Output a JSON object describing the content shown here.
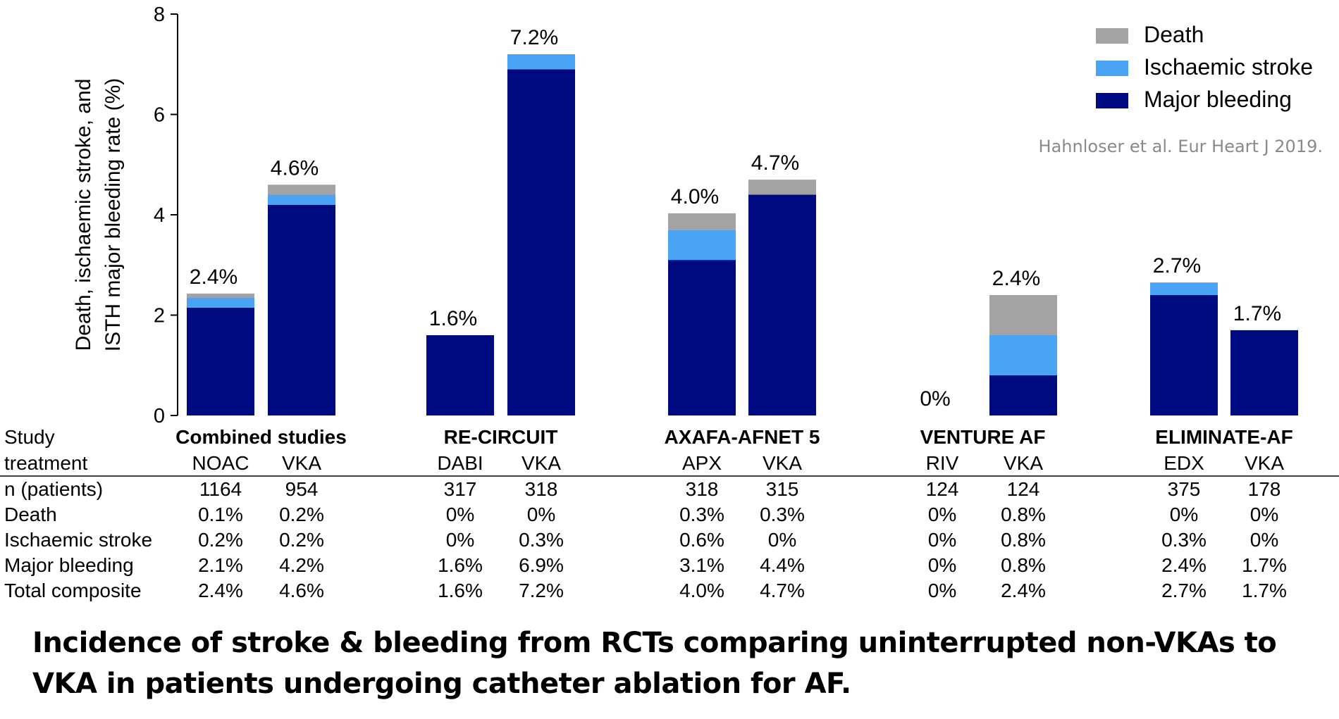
{
  "chart_data": {
    "type": "bar",
    "stacked": true,
    "ylabel": [
      "Death, ischaemic stroke, and",
      "ISTH major bleeding rate (%)"
    ],
    "ylim": [
      0,
      8
    ],
    "yticks": [
      "0",
      "2",
      "4",
      "6",
      "8"
    ],
    "groups": [
      "Combined studies",
      "RE-CIRCUIT",
      "AXAFA-AFNET 5",
      "VENTURE AF",
      "ELIMINATE-AF"
    ],
    "categories": [
      "NOAC",
      "VKA",
      "DABI",
      "VKA",
      "APX",
      "VKA",
      "RIV",
      "VKA",
      "EDX",
      "VKA"
    ],
    "series": [
      {
        "name": "Major bleeding",
        "color": "#000a80",
        "values": [
          2.15,
          4.2,
          1.6,
          6.9,
          3.1,
          4.4,
          0,
          0.8,
          2.4,
          1.7
        ]
      },
      {
        "name": "Ischaemic stroke",
        "color": "#4aa3f5",
        "values": [
          0.2,
          0.2,
          0,
          0.3,
          0.6,
          0,
          0,
          0.8,
          0.25,
          0
        ]
      },
      {
        "name": "Death",
        "color": "#a3a3a3",
        "values": [
          0.08,
          0.2,
          0,
          0,
          0.33,
          0.3,
          0,
          0.8,
          0,
          0
        ]
      }
    ],
    "bar_labels": [
      "2.4%",
      "4.6%",
      "1.6%",
      "7.2%",
      "4.0%",
      "4.7%",
      "0%",
      "2.4%",
      "2.7%",
      "1.7%"
    ],
    "legend_position": "top-right",
    "source": "Hahnloser et al. Eur Heart J 2019."
  },
  "table": {
    "study_label": "Study",
    "treatment_label": "treatment",
    "rows": [
      {
        "label": "n (patients)",
        "values": [
          "1164",
          "954",
          "317",
          "318",
          "318",
          "315",
          "124",
          "124",
          "375",
          "178"
        ]
      },
      {
        "label": "Death",
        "values": [
          "0.1%",
          "0.2%",
          "0%",
          "0%",
          "0.3%",
          "0.3%",
          "0%",
          "0.8%",
          "0%",
          "0%"
        ]
      },
      {
        "label": "Ischaemic stroke",
        "values": [
          "0.2%",
          "0.2%",
          "0%",
          "0.3%",
          "0.6%",
          "0%",
          "0%",
          "0.8%",
          "0.3%",
          "0%"
        ]
      },
      {
        "label": "Major bleeding",
        "values": [
          "2.1%",
          "4.2%",
          "1.6%",
          "6.9%",
          "3.1%",
          "4.4%",
          "0%",
          "0.8%",
          "2.4%",
          "1.7%"
        ]
      },
      {
        "label": "Total composite",
        "values": [
          "2.4%",
          "4.6%",
          "1.6%",
          "7.2%",
          "4.0%",
          "4.7%",
          "0%",
          "2.4%",
          "2.7%",
          "1.7%"
        ]
      }
    ]
  },
  "caption": "Incidence of stroke & bleeding from RCTs comparing uninterrupted non-VKAs to VKA in patients undergoing catheter ablation for AF."
}
